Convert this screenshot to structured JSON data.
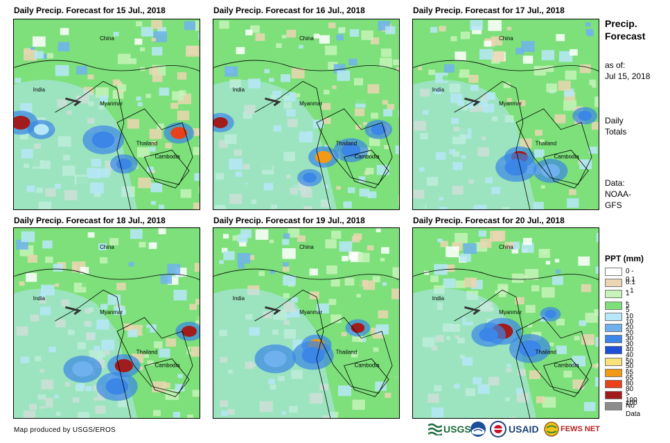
{
  "panels": [
    {
      "title": "Daily Precip. Forecast for 15 Jul., 2018"
    },
    {
      "title": "Daily Precip. Forecast for 16 Jul., 2018"
    },
    {
      "title": "Daily Precip. Forecast for 17 Jul., 2018"
    },
    {
      "title": "Daily Precip. Forecast for 18 Jul., 2018"
    },
    {
      "title": "Daily Precip. Forecast for 19 Jul., 2018"
    },
    {
      "title": "Daily Precip. Forecast for 20 Jul., 2018"
    }
  ],
  "map_labels": {
    "china": "China",
    "india": "India",
    "myanmar": "Myanmar",
    "thailand": "Thailand",
    "cambodia": "Cambodia"
  },
  "sidebar": {
    "heading_line1": "Precip.",
    "heading_line2": "Forecast",
    "asof_line1": "as of:",
    "asof_line2": "Jul 15, 2018",
    "totals_line1": "Daily",
    "totals_line2": "Totals",
    "data_line1": "Data:",
    "data_line2": "NOAA-",
    "data_line3": "GFS"
  },
  "legend": {
    "title": "PPT (mm)",
    "items": [
      {
        "label": "0 - 0.1",
        "color": "#ffffff"
      },
      {
        "label": "0.1 - 1",
        "color": "#ead6b2"
      },
      {
        "label": "1 - 5",
        "color": "#c6f3b9"
      },
      {
        "label": "5 - 10",
        "color": "#7de07a"
      },
      {
        "label": "10 - 20",
        "color": "#b6e8f8"
      },
      {
        "label": "20 - 30",
        "color": "#6fb1ee"
      },
      {
        "label": "30 - 40",
        "color": "#3b86e6"
      },
      {
        "label": "40 - 50",
        "color": "#1f4fd6"
      },
      {
        "label": "50 - 65",
        "color": "#f9e27a"
      },
      {
        "label": "65 - 80",
        "color": "#f29a18"
      },
      {
        "label": "80 - 100",
        "color": "#e8411c"
      },
      {
        "label": "> 100",
        "color": "#a11d1d"
      },
      {
        "label": "No Data",
        "color": "#8c8c8c"
      }
    ]
  },
  "credit": "Map produced by USGS/EROS",
  "logos": {
    "usgs": "USGS",
    "usaid": "USAID",
    "fewsnet": "FEWS NET"
  }
}
